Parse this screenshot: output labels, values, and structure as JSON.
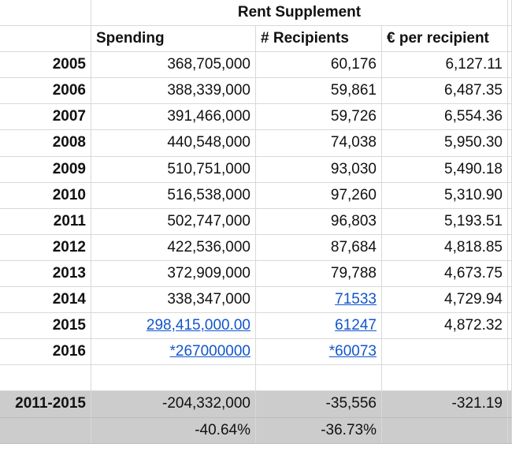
{
  "title": "Rent Supplement",
  "headers": [
    "Spending",
    "# Recipients",
    "€ per recipient"
  ],
  "rows": [
    {
      "year": "2005",
      "spending": "368,705,000",
      "recipients": "60,176",
      "per": "6,127.11"
    },
    {
      "year": "2006",
      "spending": "388,339,000",
      "recipients": "59,861",
      "per": "6,487.35"
    },
    {
      "year": "2007",
      "spending": "391,466,000",
      "recipients": "59,726",
      "per": "6,554.36"
    },
    {
      "year": "2008",
      "spending": "440,548,000",
      "recipients": "74,038",
      "per": "5,950.30"
    },
    {
      "year": "2009",
      "spending": "510,751,000",
      "recipients": "93,030",
      "per": "5,490.18"
    },
    {
      "year": "2010",
      "spending": "516,538,000",
      "recipients": "97,260",
      "per": "5,310.90"
    },
    {
      "year": "2011",
      "spending": "502,747,000",
      "recipients": "96,803",
      "per": "5,193.51"
    },
    {
      "year": "2012",
      "spending": "422,536,000",
      "recipients": "87,684",
      "per": "4,818.85"
    },
    {
      "year": "2013",
      "spending": "372,909,000",
      "recipients": "79,788",
      "per": "4,673.75"
    },
    {
      "year": "2014",
      "spending": "338,347,000",
      "recipients": "71533",
      "per": "4,729.94"
    },
    {
      "year": "2015",
      "spending": "298,415,000.00",
      "recipients": "61247",
      "per": "4,872.32"
    },
    {
      "year": "2016",
      "spending": "*267000000",
      "recipients": "*60073",
      "per": ""
    }
  ],
  "summary": {
    "label": "2011-2015",
    "spending_change": "-204,332,000",
    "recipients_change": "-35,556",
    "per_change": "-321.19",
    "spending_pct": "-40.64%",
    "recipients_pct": "-36.73%"
  },
  "colors": {
    "link": "#1155cc",
    "summary_fill": "#cccccc",
    "gridline": "#d9d9d9"
  }
}
